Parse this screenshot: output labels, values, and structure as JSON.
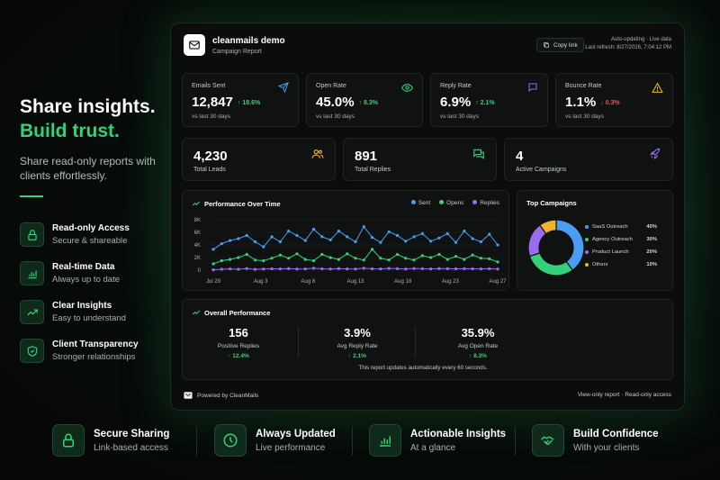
{
  "hero": {
    "line1": "Share insights.",
    "line2": "Build trust.",
    "subtext": "Share read-only reports with clients effortlessly."
  },
  "features": [
    {
      "title": "Read-only Access",
      "sub": "Secure & shareable",
      "icon": "lock-icon"
    },
    {
      "title": "Real-time Data",
      "sub": "Always up to date",
      "icon": "bar-chart-icon"
    },
    {
      "title": "Clear Insights",
      "sub": "Easy to understand",
      "icon": "trend-up-icon"
    },
    {
      "title": "Client Transparency",
      "sub": "Stronger relationships",
      "icon": "shield-check-icon"
    }
  ],
  "report": {
    "title": "cleanmails demo",
    "subtitle": "Campaign Report",
    "copy_link": "Copy link",
    "auto_updating": "Auto-updating · Live data",
    "last_refresh": "Last refresh: 8/27/2026, 7:04:12 PM"
  },
  "kpis": [
    {
      "label": "Emails Sent",
      "value": "12,847",
      "delta": "↑ 18.6%",
      "trend": "up",
      "compare": "vs last 30 days",
      "icon": "send-icon",
      "color": "#4a9df0"
    },
    {
      "label": "Open Rate",
      "value": "45.0%",
      "delta": "↑ 8.3%",
      "trend": "up",
      "compare": "vs last 30 days",
      "icon": "eye-icon",
      "color": "#34d17a"
    },
    {
      "label": "Reply Rate",
      "value": "6.9%",
      "delta": "↑ 2.1%",
      "trend": "up",
      "compare": "vs last 30 days",
      "icon": "message-icon",
      "color": "#9b6cf0"
    },
    {
      "label": "Bounce Rate",
      "value": "1.1%",
      "delta": "↓ 0.3%",
      "trend": "down",
      "compare": "vs last 30 days",
      "icon": "warning-icon",
      "color": "#f0b429"
    }
  ],
  "stats": [
    {
      "value": "4,230",
      "label": "Total Leads",
      "icon": "users-icon",
      "color": "#f0b429"
    },
    {
      "value": "891",
      "label": "Total Replies",
      "icon": "chat-icon",
      "color": "#34d17a"
    },
    {
      "value": "4",
      "label": "Active Campaigns",
      "icon": "rocket-icon",
      "color": "#9b6cf0"
    }
  ],
  "performance": {
    "title": "Performance Over Time",
    "legend": [
      {
        "name": "Sent",
        "color": "#4a9df0"
      },
      {
        "name": "Opens",
        "color": "#34d17a"
      },
      {
        "name": "Replies",
        "color": "#9b6cf0"
      }
    ]
  },
  "chart_data": [
    {
      "type": "line",
      "title": "Performance Over Time",
      "ylim": [
        0,
        8000
      ],
      "yticks": [
        "0",
        "2K",
        "4K",
        "6K",
        "8K"
      ],
      "xticks": [
        "Jul 29",
        "Aug 3",
        "Aug 8",
        "Aug 13",
        "Aug 18",
        "Aug 23",
        "Aug 27"
      ],
      "series": [
        {
          "name": "Sent",
          "color": "#4a9df0",
          "values": [
            3300,
            4200,
            4700,
            5000,
            5500,
            4500,
            3700,
            5300,
            4500,
            6200,
            5500,
            4700,
            6500,
            5300,
            4800,
            6200,
            5300,
            4500,
            6900,
            5200,
            4400,
            6100,
            5500,
            4600,
            5300,
            5800,
            4600,
            5100,
            5800,
            4400,
            6200,
            5000,
            4500,
            5700,
            4000
          ]
        },
        {
          "name": "Opens",
          "color": "#34d17a",
          "values": [
            1000,
            1500,
            1700,
            2000,
            2500,
            1600,
            1500,
            1900,
            2400,
            1900,
            2600,
            1700,
            1500,
            2500,
            2000,
            1700,
            2600,
            1900,
            1600,
            3300,
            1900,
            1600,
            2500,
            1900,
            1600,
            2300,
            2000,
            2500,
            1700,
            2200,
            1700,
            2400,
            1900,
            1800,
            1300
          ]
        },
        {
          "name": "Replies",
          "color": "#9b6cf0",
          "values": [
            50,
            150,
            200,
            150,
            250,
            120,
            180,
            220,
            200,
            250,
            180,
            200,
            300,
            220,
            180,
            250,
            200,
            180,
            300,
            220,
            200,
            280,
            230,
            180,
            260,
            240,
            200,
            250,
            230,
            210,
            240,
            220,
            200,
            230,
            180
          ]
        }
      ]
    },
    {
      "type": "pie",
      "title": "Top Campaigns",
      "categories": [
        "SaaS Outreach",
        "Agency Outreach",
        "Product Launch",
        "Others"
      ],
      "values": [
        40,
        30,
        20,
        10
      ],
      "colors": [
        "#4a9df0",
        "#34d17a",
        "#9b6cf0",
        "#f0b429"
      ],
      "labels": [
        "40%",
        "30%",
        "20%",
        "10%"
      ]
    }
  ],
  "top_campaigns": {
    "title": "Top Campaigns"
  },
  "overall": {
    "title": "Overall Performance",
    "cols": [
      {
        "value": "156",
        "label": "Positive Replies",
        "delta": "↑ 12.4%"
      },
      {
        "value": "3.9%",
        "label": "Avg Reply Rate",
        "delta": "↑ 2.1%"
      },
      {
        "value": "35.9%",
        "label": "Avg Open Rate",
        "delta": "↑ 8.3%"
      }
    ],
    "note": "This report updates automatically every 60 seconds."
  },
  "footer": {
    "powered": "Powered by CleanMails",
    "access": "View-only report · Read-only access"
  },
  "bottom": [
    {
      "title": "Secure Sharing",
      "sub": "Link-based access",
      "icon": "lock-icon"
    },
    {
      "title": "Always Updated",
      "sub": "Live performance",
      "icon": "clock-icon"
    },
    {
      "title": "Actionable Insights",
      "sub": "At a glance",
      "icon": "bar-chart-icon"
    },
    {
      "title": "Build Confidence",
      "sub": "With your clients",
      "icon": "handshake-icon"
    }
  ],
  "accent": "#34d17a"
}
